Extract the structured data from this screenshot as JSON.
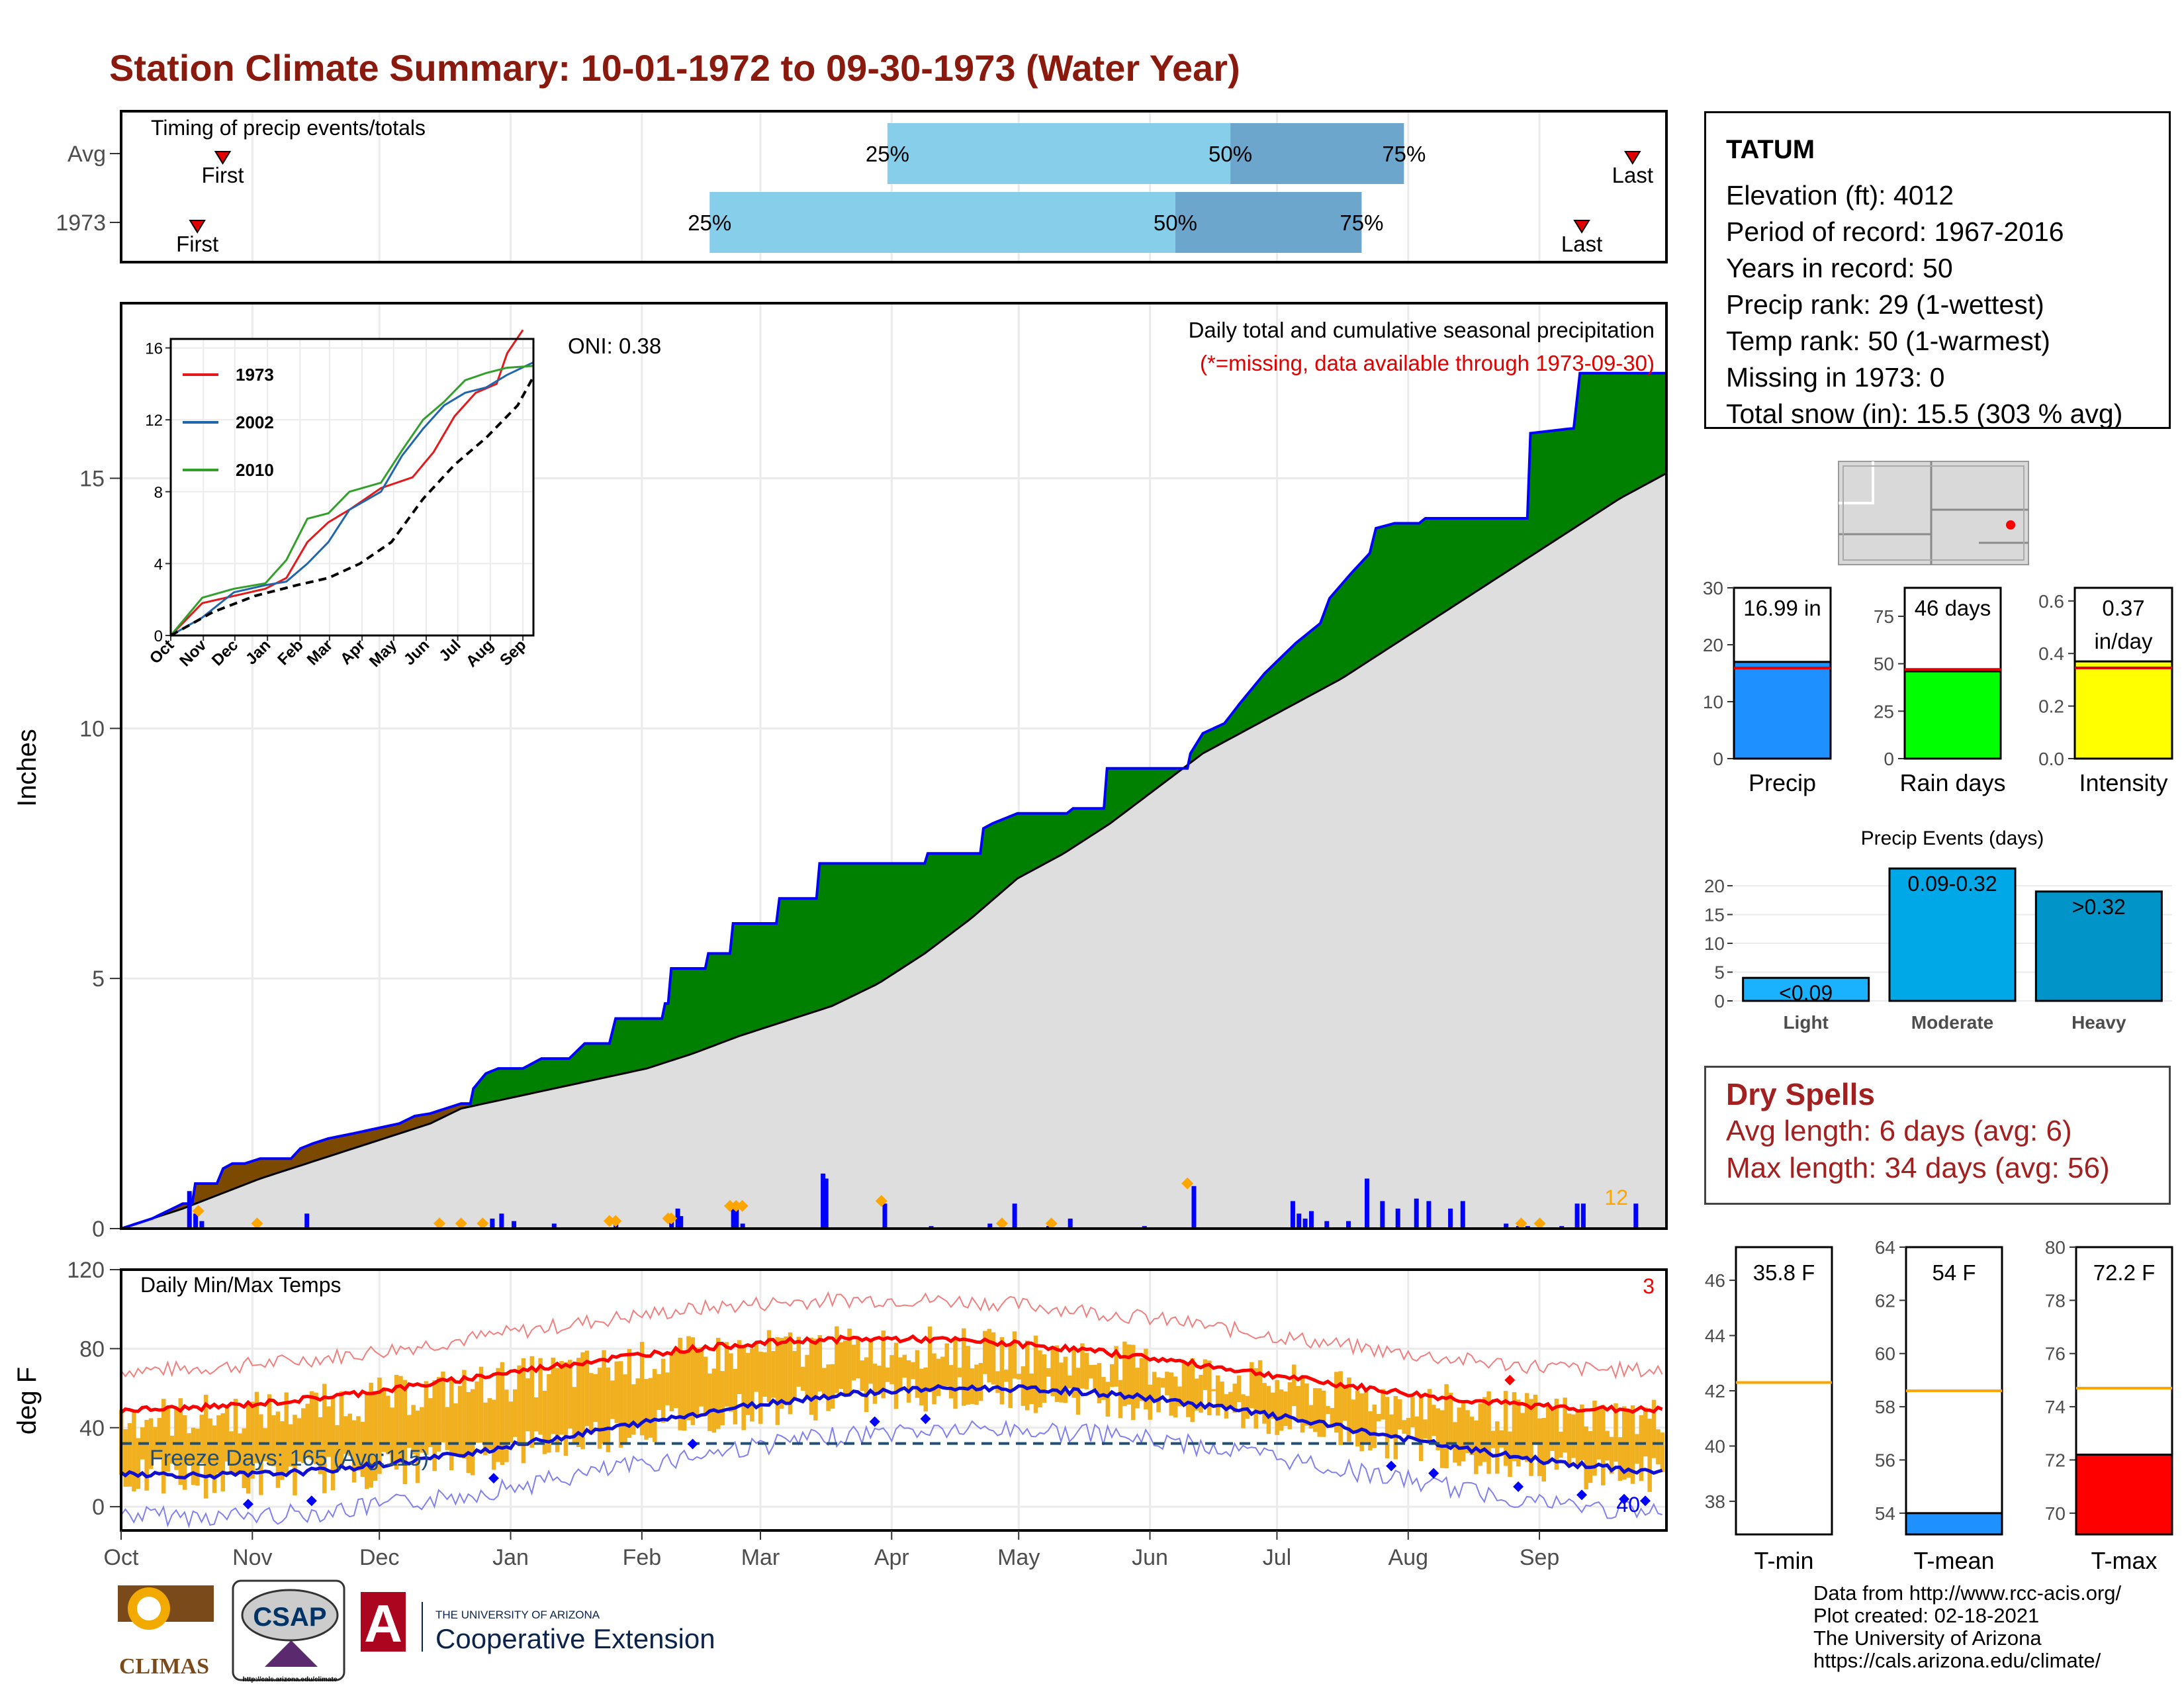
{
  "page_title": "Station Climate Summary: 10-01-1972 to 09-30-1973 (Water Year)",
  "station": {
    "name": "TATUM",
    "lines": [
      "Elevation (ft): 4012",
      "Period of record: 1967-2016",
      "Years in record: 50",
      "Precip rank: 29 (1-wettest)",
      "Temp rank: 50 (1-warmest)",
      "Missing in 1973: 0",
      "Total snow (in): 15.5 (303 % avg)"
    ]
  },
  "dry_spells": {
    "title": "Dry Spells",
    "avg_length": "Avg length: 6 days (avg: 6)",
    "max_length": "Max length: 34 days (avg: 56)"
  },
  "footer": [
    "Data from http://www.rcc-acis.org/",
    "Plot created: 02-18-2021",
    "The University of Arizona",
    "https://cals.arizona.edu/climate/"
  ],
  "logos": {
    "climas": "CLIMAS",
    "csap": "CSAP",
    "csap_url": "http://cals.arizona.edu/climate",
    "ua_small": "THE UNIVERSITY OF ARIZONA",
    "ua_big": "Cooperative Extension"
  },
  "chart_data": [
    {
      "type": "bar",
      "name": "timing",
      "title": "Timing of precip events/totals",
      "rows": [
        {
          "label": "Avg",
          "first": "Oct 25",
          "p25": "Mar 31",
          "p50": "Jun 20",
          "p75": "Jul 31",
          "last": "Sep 23"
        },
        {
          "label": "1973",
          "first": "Oct 19",
          "p25": "Feb 17",
          "p50": "Jun 7",
          "p75": "Jul 21",
          "last": "Sep 11"
        }
      ],
      "labels": {
        "first": "First",
        "last": "Last",
        "p25": "25%",
        "p50": "50%",
        "p75": "75%"
      }
    },
    {
      "type": "area",
      "name": "precip",
      "title": "Daily total and cumulative seasonal precipitation",
      "subtitle": "(*=missing, data available through 1973-09-30)",
      "oni": "ONI: 0.38",
      "ylabel": "Inches",
      "ylim": [
        0,
        18.5
      ],
      "yticks": [
        0,
        5,
        10,
        15
      ],
      "xticks": [
        "Oct",
        "Nov",
        "Dec",
        "Jan",
        "Feb",
        "Mar",
        "Apr",
        "May",
        "Jun",
        "Jul",
        "Aug",
        "Sep"
      ],
      "count_label": "12",
      "cum_1973": [
        [
          0,
          0
        ],
        [
          5,
          0.1
        ],
        [
          10,
          0.2
        ],
        [
          15,
          0.35
        ],
        [
          20,
          0.5
        ],
        [
          23,
          0.5
        ],
        [
          24,
          0.9
        ],
        [
          31,
          0.9
        ],
        [
          33,
          1.2
        ],
        [
          36,
          1.3
        ],
        [
          40,
          1.3
        ],
        [
          45,
          1.4
        ],
        [
          55,
          1.4
        ],
        [
          58,
          1.6
        ],
        [
          62,
          1.7
        ],
        [
          67,
          1.8
        ],
        [
          75,
          1.9
        ],
        [
          90,
          2.1
        ],
        [
          95,
          2.25
        ],
        [
          100,
          2.3
        ],
        [
          105,
          2.4
        ],
        [
          110,
          2.5
        ],
        [
          113,
          2.5
        ],
        [
          114,
          2.8
        ],
        [
          118,
          3.1
        ],
        [
          122,
          3.2
        ],
        [
          130,
          3.2
        ],
        [
          136,
          3.4
        ],
        [
          145,
          3.4
        ],
        [
          150,
          3.7
        ],
        [
          158,
          3.7
        ],
        [
          160,
          4.2
        ],
        [
          175,
          4.2
        ],
        [
          176,
          4.5
        ],
        [
          177,
          4.5
        ],
        [
          178,
          5.2
        ],
        [
          189,
          5.2
        ],
        [
          190,
          5.5
        ],
        [
          197,
          5.5
        ],
        [
          198,
          6.1
        ],
        [
          212,
          6.1
        ],
        [
          213,
          6.6
        ],
        [
          225,
          6.6
        ],
        [
          226,
          7.3
        ],
        [
          260,
          7.3
        ],
        [
          261,
          7.5
        ],
        [
          278,
          7.5
        ],
        [
          279,
          8.0
        ],
        [
          282,
          8.1
        ],
        [
          290,
          8.3
        ],
        [
          306,
          8.3
        ],
        [
          308,
          8.4
        ],
        [
          318,
          8.4
        ],
        [
          319,
          9.2
        ],
        [
          330,
          9.2
        ],
        [
          345,
          9.2
        ],
        [
          346,
          9.5
        ],
        [
          350,
          9.9
        ],
        [
          357,
          10.1
        ],
        [
          362,
          10.5
        ],
        [
          370,
          11.1
        ],
        [
          380,
          11.7
        ],
        [
          388,
          12.1
        ],
        [
          391,
          12.6
        ],
        [
          398,
          13.1
        ],
        [
          404,
          13.5
        ],
        [
          406,
          14.0
        ],
        [
          412,
          14.1
        ],
        [
          420,
          14.1
        ],
        [
          422,
          14.2
        ],
        [
          434,
          14.2
        ],
        [
          455,
          14.2
        ],
        [
          456,
          15.9
        ],
        [
          470,
          16.0
        ],
        [
          472,
          17.1
        ],
        [
          500,
          17.1
        ]
      ],
      "cum_avg": [
        [
          0,
          0
        ],
        [
          20,
          0.4
        ],
        [
          45,
          1.0
        ],
        [
          60,
          1.3
        ],
        [
          80,
          1.7
        ],
        [
          100,
          2.1
        ],
        [
          110,
          2.4
        ],
        [
          125,
          2.6
        ],
        [
          140,
          2.8
        ],
        [
          155,
          3.0
        ],
        [
          170,
          3.2
        ],
        [
          185,
          3.5
        ],
        [
          200,
          3.85
        ],
        [
          215,
          4.15
        ],
        [
          230,
          4.45
        ],
        [
          245,
          4.9
        ],
        [
          260,
          5.5
        ],
        [
          275,
          6.2
        ],
        [
          290,
          7.0
        ],
        [
          305,
          7.5
        ],
        [
          320,
          8.1
        ],
        [
          335,
          8.8
        ],
        [
          350,
          9.5
        ],
        [
          365,
          10.0
        ],
        [
          380,
          10.5
        ],
        [
          395,
          11.0
        ],
        [
          410,
          11.6
        ],
        [
          425,
          12.2
        ],
        [
          440,
          12.8
        ],
        [
          455,
          13.4
        ],
        [
          470,
          14.0
        ],
        [
          485,
          14.6
        ],
        [
          500,
          15.1
        ]
      ],
      "daily": [
        [
          22,
          0.75
        ],
        [
          24,
          0.3
        ],
        [
          26,
          0.15
        ],
        [
          60,
          0.3
        ],
        [
          120,
          0.2
        ],
        [
          123,
          0.3
        ],
        [
          127,
          0.15
        ],
        [
          140,
          0.1
        ],
        [
          160,
          0.1
        ],
        [
          178,
          0.15
        ],
        [
          180,
          0.4
        ],
        [
          181,
          0.25
        ],
        [
          198,
          0.4
        ],
        [
          199,
          0.4
        ],
        [
          201,
          0.1
        ],
        [
          227,
          1.1
        ],
        [
          228,
          1.0
        ],
        [
          247,
          0.5
        ],
        [
          262,
          0.05
        ],
        [
          281,
          0.1
        ],
        [
          289,
          0.5
        ],
        [
          300,
          0.05
        ],
        [
          307,
          0.2
        ],
        [
          331,
          0.05
        ],
        [
          347,
          0.85
        ],
        [
          379,
          0.55
        ],
        [
          381,
          0.3
        ],
        [
          383,
          0.2
        ],
        [
          385,
          0.35
        ],
        [
          390,
          0.15
        ],
        [
          397,
          0.15
        ],
        [
          403,
          1.0
        ],
        [
          408,
          0.55
        ],
        [
          413,
          0.4
        ],
        [
          419,
          0.6
        ],
        [
          423,
          0.55
        ],
        [
          430,
          0.4
        ],
        [
          434,
          0.55
        ],
        [
          448,
          0.1
        ],
        [
          452,
          0.05
        ],
        [
          455,
          0.05
        ],
        [
          466,
          0.05
        ],
        [
          471,
          0.5
        ],
        [
          473,
          0.5
        ],
        [
          490,
          0.5
        ]
      ],
      "markers_day": [
        25,
        44,
        103,
        110,
        117,
        158,
        160,
        177,
        178,
        197,
        199,
        201,
        246,
        285,
        301,
        345,
        453,
        459
      ],
      "inset": {
        "type": "line",
        "ylim": [
          0,
          16.5
        ],
        "yticks": [
          0,
          4,
          8,
          12,
          16
        ],
        "xticks": [
          "Oct",
          "Nov",
          "Dec",
          "Jan",
          "Feb",
          "Mar",
          "Apr",
          "May",
          "Jun",
          "Jul",
          "Aug",
          "Sep"
        ],
        "series": [
          {
            "name": "1973",
            "color": "#e31a1c",
            "values": [
              [
                0,
                0
              ],
              [
                30,
                1.8
              ],
              [
                60,
                2.2
              ],
              [
                90,
                2.6
              ],
              [
                110,
                3.2
              ],
              [
                130,
                5.2
              ],
              [
                150,
                6.3
              ],
              [
                170,
                7.0
              ],
              [
                200,
                8.2
              ],
              [
                230,
                8.8
              ],
              [
                250,
                10.2
              ],
              [
                270,
                12.2
              ],
              [
                290,
                13.5
              ],
              [
                310,
                14.0
              ],
              [
                320,
                15.7
              ],
              [
                335,
                17.0
              ]
            ]
          },
          {
            "name": "2002",
            "color": "#2166ac",
            "values": [
              [
                0,
                0
              ],
              [
                30,
                1.0
              ],
              [
                60,
                2.4
              ],
              [
                90,
                2.8
              ],
              [
                110,
                3.0
              ],
              [
                130,
                4.0
              ],
              [
                150,
                5.2
              ],
              [
                170,
                7.0
              ],
              [
                200,
                8.0
              ],
              [
                220,
                10.0
              ],
              [
                240,
                11.5
              ],
              [
                260,
                12.8
              ],
              [
                280,
                13.5
              ],
              [
                300,
                13.8
              ],
              [
                320,
                14.5
              ],
              [
                345,
                15.2
              ]
            ]
          },
          {
            "name": "2010",
            "color": "#33a02c",
            "values": [
              [
                0,
                0
              ],
              [
                30,
                2.1
              ],
              [
                60,
                2.6
              ],
              [
                90,
                2.9
              ],
              [
                110,
                4.2
              ],
              [
                130,
                6.5
              ],
              [
                150,
                6.8
              ],
              [
                170,
                8.0
              ],
              [
                200,
                8.5
              ],
              [
                220,
                10.3
              ],
              [
                240,
                12.0
              ],
              [
                260,
                13.0
              ],
              [
                280,
                14.2
              ],
              [
                300,
                14.6
              ],
              [
                320,
                14.9
              ],
              [
                345,
                15.0
              ]
            ]
          },
          {
            "name": "",
            "color": "#000000",
            "dashed": true,
            "values": [
              [
                0,
                0
              ],
              [
                40,
                1.3
              ],
              [
                80,
                2.2
              ],
              [
                120,
                2.8
              ],
              [
                150,
                3.2
              ],
              [
                180,
                4.0
              ],
              [
                210,
                5.2
              ],
              [
                240,
                7.6
              ],
              [
                270,
                9.5
              ],
              [
                300,
                11.0
              ],
              [
                330,
                12.8
              ],
              [
                345,
                14.4
              ]
            ]
          }
        ]
      }
    },
    {
      "type": "bar",
      "name": "temps",
      "title": "Daily Min/Max Temps",
      "ylabel": "deg F",
      "ylim": [
        -12,
        120
      ],
      "yticks": [
        0,
        40,
        80,
        120
      ],
      "xticks": [
        "Oct",
        "Nov",
        "Dec",
        "Jan",
        "Feb",
        "Mar",
        "Apr",
        "May",
        "Jun",
        "Jul",
        "Aug",
        "Sep"
      ],
      "freeze_label": "Freeze Days: 165 (Avg:115)",
      "freeze_line": 32,
      "count_high": "3",
      "count_low": "40"
    },
    {
      "type": "bar",
      "name": "totals",
      "panels": [
        {
          "label": "Precip",
          "box": "16.99 in",
          "value": 16.99,
          "avg": 15.9,
          "ymax": 30,
          "yticks": [
            0,
            10,
            20,
            30
          ],
          "color": "#1e90ff"
        },
        {
          "label": "Rain days",
          "box": "46 days",
          "value": 46,
          "avg": 47,
          "ymax": 90,
          "yticks": [
            0,
            25,
            50,
            75
          ],
          "color": "#00ff00"
        },
        {
          "label": "Intensity",
          "box": "0.37\nin/day",
          "value": 0.37,
          "avg": 0.345,
          "ymax": 0.65,
          "yticks": [
            0.0,
            0.2,
            0.4,
            0.6
          ],
          "color": "#ffff00"
        }
      ]
    },
    {
      "type": "bar",
      "name": "events",
      "title": "Precip Events (days)",
      "categories": [
        "Light",
        "Moderate",
        "Heavy"
      ],
      "bar_labels": [
        "<0.09",
        "0.09-0.32",
        ">0.32"
      ],
      "values": [
        4,
        23,
        19
      ],
      "colors": [
        "#1ab2ff",
        "#00a8e8",
        "#0094c8"
      ],
      "ylim": [
        0,
        23
      ],
      "yticks": [
        0,
        5,
        10,
        15,
        20
      ]
    },
    {
      "type": "bar",
      "name": "temp_summary",
      "panels": [
        {
          "label": "T-min",
          "box": "35.8 F",
          "value": 35.8,
          "avg": 42.3,
          "ylim": [
            36.8,
            47.2
          ],
          "yticks": [
            38,
            40,
            42,
            44,
            46
          ],
          "color": "#ffffff"
        },
        {
          "label": "T-mean",
          "box": "54 F",
          "value": 54,
          "avg": 58.6,
          "ylim": [
            53.2,
            64
          ],
          "yticks": [
            54,
            56,
            58,
            60,
            62,
            64
          ],
          "color": "#1e90ff"
        },
        {
          "label": "T-max",
          "box": "72.2 F",
          "value": 72.2,
          "avg": 74.7,
          "ylim": [
            69.2,
            80
          ],
          "yticks": [
            70,
            72,
            74,
            76,
            78,
            80
          ],
          "color": "#ff0000"
        }
      ]
    }
  ],
  "colors": {
    "title": "#8b1a0e",
    "green": "#008000",
    "brown": "#7b4a00",
    "blue": "#0000ff",
    "grey": "#dedede",
    "orange": "#f0b020",
    "red": "#ff0000",
    "light_blue": "#87ceeb",
    "mid_blue": "#6ca6cd"
  }
}
